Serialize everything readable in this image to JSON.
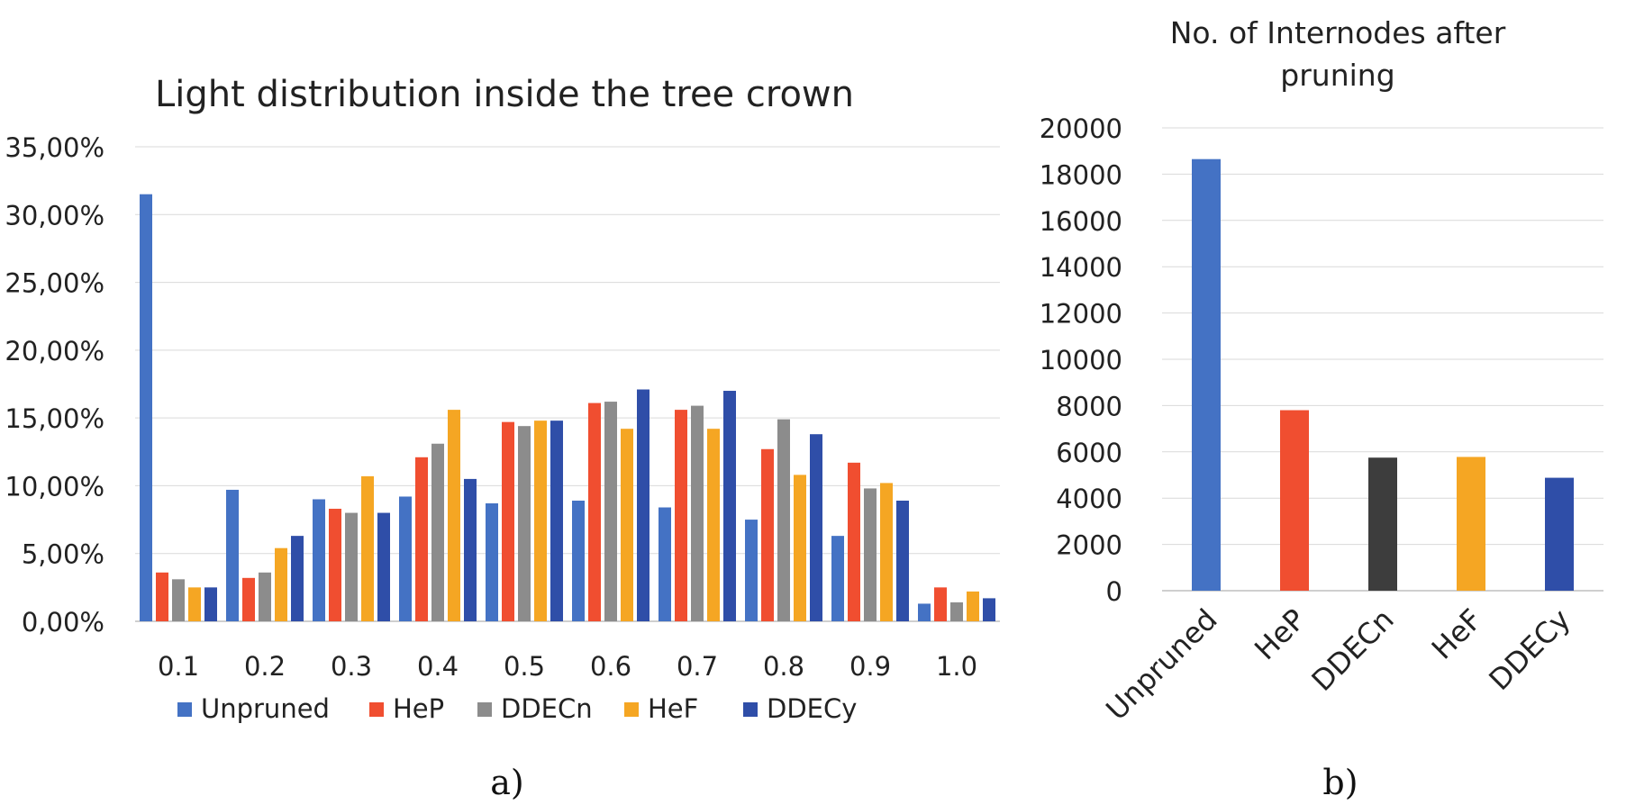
{
  "chart_data": [
    {
      "type": "bar",
      "title": "Light distribution inside the tree crown",
      "xlabel": "",
      "ylabel": "",
      "categories": [
        "0.1",
        "0.2",
        "0.3",
        "0.4",
        "0.5",
        "0.6",
        "0.7",
        "0.8",
        "0.9",
        "1.0"
      ],
      "series": [
        {
          "name": "Unpruned",
          "color": "#4472c4",
          "values": [
            31.5,
            9.7,
            9.0,
            9.2,
            8.7,
            8.9,
            8.4,
            7.5,
            6.3,
            1.3
          ]
        },
        {
          "name": "HeP",
          "color": "#f04e30",
          "values": [
            3.6,
            3.2,
            8.3,
            12.1,
            14.7,
            16.1,
            15.6,
            12.7,
            11.7,
            2.5
          ]
        },
        {
          "name": "DDECn",
          "color": "#8c8c8c",
          "values": [
            3.1,
            3.6,
            8.0,
            13.1,
            14.4,
            16.2,
            15.9,
            14.9,
            9.8,
            1.4
          ]
        },
        {
          "name": "HeF",
          "color": "#f5a623",
          "values": [
            2.5,
            5.4,
            10.7,
            15.6,
            14.8,
            14.2,
            14.2,
            10.8,
            10.2,
            2.2
          ]
        },
        {
          "name": "DDECy",
          "color": "#2f4ea8",
          "values": [
            2.5,
            6.3,
            8.0,
            10.5,
            14.8,
            17.1,
            17.0,
            13.8,
            8.9,
            1.7
          ]
        }
      ],
      "ylim": [
        0,
        35
      ],
      "yticks": [
        "0,00%",
        "5,00%",
        "10,00%",
        "15,00%",
        "20,00%",
        "25,00%",
        "30,00%",
        "35,00%"
      ],
      "grid": true,
      "legend": "bottom",
      "panel_label": "a)"
    },
    {
      "type": "bar",
      "title": "No. of Internodes after pruning",
      "title_lines": [
        "No. of Internodes after",
        "pruning"
      ],
      "xlabel": "",
      "ylabel": "",
      "categories": [
        "Unpruned",
        "HeP",
        "DDECn",
        "HeF",
        "DDECy"
      ],
      "values": [
        18650,
        7800,
        5750,
        5780,
        4880
      ],
      "colors": [
        "#4472c4",
        "#f04e30",
        "#3d3d3d",
        "#f5a623",
        "#2f4ea8"
      ],
      "ylim": [
        0,
        20000
      ],
      "yticks": [
        "0",
        "2000",
        "4000",
        "6000",
        "8000",
        "10000",
        "12000",
        "14000",
        "16000",
        "18000",
        "20000"
      ],
      "grid": true,
      "legend": "none",
      "panel_label": "b)"
    }
  ]
}
